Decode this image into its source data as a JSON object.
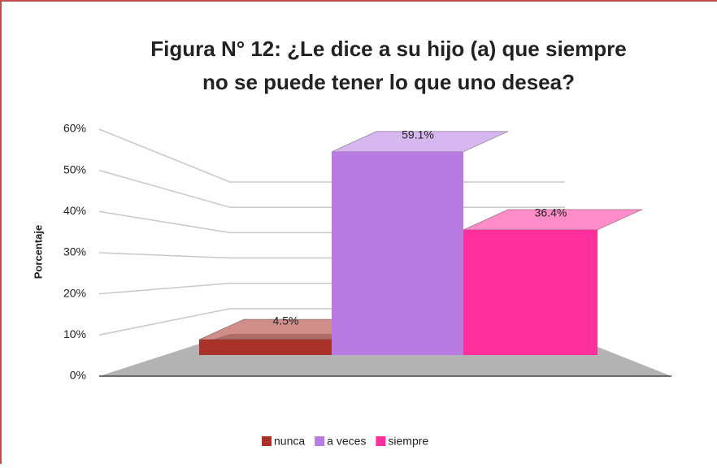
{
  "chart_data": {
    "type": "bar3d",
    "title": "Figura N° 12: ¿Le dice a su hijo (a) que siempre",
    "subtitle": "no se puede tener lo que uno desea?",
    "ylabel": "Porcentaje",
    "categories": [
      "nunca",
      "a veces",
      "siempre"
    ],
    "series": [
      {
        "name": "nunca",
        "color": "#a8322a"
      },
      {
        "name": "a veces",
        "color": "#b77be2"
      },
      {
        "name": "siempre",
        "color": "#ff2f9c"
      }
    ],
    "values": [
      4.5,
      59.1,
      36.4
    ],
    "value_labels": [
      "4.5%",
      "59.1%",
      "36.4%"
    ],
    "ylim": [
      0,
      60
    ],
    "yticks": [
      {
        "value": 0,
        "label": "0%"
      },
      {
        "value": 10,
        "label": "10%"
      },
      {
        "value": 20,
        "label": "20%"
      },
      {
        "value": 30,
        "label": "30%"
      },
      {
        "value": 40,
        "label": "40%"
      },
      {
        "value": 50,
        "label": "50%"
      },
      {
        "value": 60,
        "label": "60%"
      }
    ],
    "grid": true,
    "legend": "bottom"
  }
}
